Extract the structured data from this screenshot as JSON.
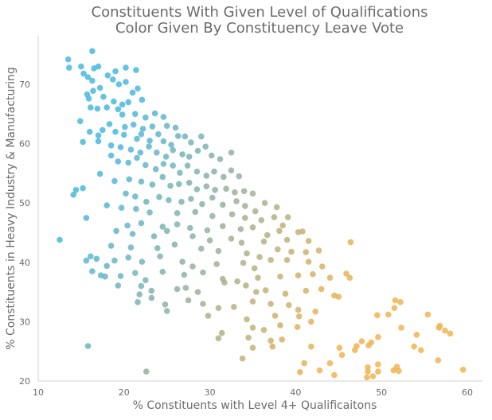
{
  "chart_data": {
    "type": "scatter",
    "title": [
      "Constituents With Given Level of Qualifications",
      "Color Given By Constituency Leave Vote"
    ],
    "xlabel": "% Constituents with Level 4+ Qualificaitons",
    "ylabel": "% Constituents in Heavy Industry & Manufacturing",
    "xlim": [
      10,
      62
    ],
    "ylim": [
      20,
      79
    ],
    "x_ticks": [
      "10",
      "20",
      "30",
      "40",
      "50",
      "60"
    ],
    "y_ticks": [
      "20",
      "30",
      "40",
      "50",
      "60",
      "70"
    ],
    "grid": false,
    "colors": {
      "low_leave": "#4ab8dd",
      "mid_leave": "#9fb096",
      "high_leave": "#f0b450",
      "text": "#6b6b6b",
      "axis": "#d3d3d3"
    },
    "points": [
      [
        13.5,
        74.2
      ],
      [
        13.6,
        72.8
      ],
      [
        16.3,
        75.6
      ],
      [
        15.0,
        73.0
      ],
      [
        15.3,
        71.8
      ],
      [
        15.8,
        71.2
      ],
      [
        16.3,
        70.6
      ],
      [
        16.5,
        72.7
      ],
      [
        17.0,
        73.0
      ],
      [
        18.1,
        71.5
      ],
      [
        19.0,
        72.2
      ],
      [
        20.2,
        72.8
      ],
      [
        21.4,
        72.4
      ],
      [
        18.7,
        70.8
      ],
      [
        19.4,
        70.0
      ],
      [
        20.2,
        70.4
      ],
      [
        21.6,
        69.3
      ],
      [
        17.2,
        69.4
      ],
      [
        16.4,
        68.9
      ],
      [
        15.7,
        68.3
      ],
      [
        15.9,
        67.6
      ],
      [
        17.6,
        67.9
      ],
      [
        18.8,
        67.1
      ],
      [
        19.8,
        66.6
      ],
      [
        20.5,
        67.0
      ],
      [
        21.0,
        68.6
      ],
      [
        22.1,
        67.4
      ],
      [
        16.1,
        66.1
      ],
      [
        16.9,
        65.9
      ],
      [
        18.0,
        66.1
      ],
      [
        19.3,
        65.8
      ],
      [
        19.8,
        64.9
      ],
      [
        21.3,
        65.0
      ],
      [
        22.5,
        64.4
      ],
      [
        23.6,
        65.1
      ],
      [
        24.6,
        64.5
      ],
      [
        14.9,
        63.8
      ],
      [
        18.3,
        63.3
      ],
      [
        20.1,
        62.8
      ],
      [
        21.1,
        63.2
      ],
      [
        22.2,
        62.5
      ],
      [
        23.3,
        62.9
      ],
      [
        24.0,
        61.6
      ],
      [
        25.0,
        63.0
      ],
      [
        26.0,
        62.7
      ],
      [
        16.0,
        62.0
      ],
      [
        17.0,
        61.4
      ],
      [
        17.5,
        62.3
      ],
      [
        19.0,
        62.0
      ],
      [
        20.0,
        61.5
      ],
      [
        21.5,
        60.8
      ],
      [
        22.0,
        61.6
      ],
      [
        23.0,
        60.5
      ],
      [
        24.6,
        60.4
      ],
      [
        25.5,
        59.8
      ],
      [
        26.3,
        61.3
      ],
      [
        27.1,
        61.2
      ],
      [
        27.8,
        60.2
      ],
      [
        29.0,
        61.2
      ],
      [
        15.2,
        60.3
      ],
      [
        17.0,
        60.4
      ],
      [
        18.5,
        59.7
      ],
      [
        19.6,
        59.4
      ],
      [
        20.8,
        59.0
      ],
      [
        21.9,
        58.5
      ],
      [
        22.9,
        59.5
      ],
      [
        23.8,
        58.5
      ],
      [
        24.9,
        57.8
      ],
      [
        25.7,
        58.9
      ],
      [
        26.8,
        58.2
      ],
      [
        27.6,
        57.8
      ],
      [
        28.6,
        58.8
      ],
      [
        29.5,
        59.5
      ],
      [
        30.2,
        58.0
      ],
      [
        31.2,
        57.4
      ],
      [
        32.5,
        58.5
      ],
      [
        18.5,
        58.0
      ],
      [
        19.3,
        57.0
      ],
      [
        20.5,
        56.8
      ],
      [
        21.5,
        57.6
      ],
      [
        22.5,
        56.4
      ],
      [
        23.7,
        55.7
      ],
      [
        24.6,
        56.6
      ],
      [
        25.7,
        56.3
      ],
      [
        26.5,
        55.1
      ],
      [
        27.4,
        56.3
      ],
      [
        28.5,
        55.3
      ],
      [
        29.6,
        54.6
      ],
      [
        30.5,
        55.3
      ],
      [
        31.6,
        54.4
      ],
      [
        32.5,
        55.5
      ],
      [
        33.4,
        54.5
      ],
      [
        17.2,
        54.9
      ],
      [
        18.9,
        53.7
      ],
      [
        20.6,
        54.0
      ],
      [
        22.0,
        53.6
      ],
      [
        23.3,
        53.1
      ],
      [
        24.5,
        54.4
      ],
      [
        25.4,
        52.9
      ],
      [
        26.4,
        53.2
      ],
      [
        27.6,
        53.4
      ],
      [
        28.5,
        52.3
      ],
      [
        29.6,
        52.8
      ],
      [
        30.6,
        52.2
      ],
      [
        31.9,
        52.4
      ],
      [
        32.9,
        51.8
      ],
      [
        34.0,
        52.0
      ],
      [
        35.0,
        51.6
      ],
      [
        14.4,
        52.2
      ],
      [
        14.1,
        51.4
      ],
      [
        15.2,
        52.5
      ],
      [
        20.2,
        51.6
      ],
      [
        21.3,
        51.1
      ],
      [
        22.6,
        50.2
      ],
      [
        24.1,
        51.0
      ],
      [
        25.2,
        50.5
      ],
      [
        26.7,
        50.2
      ],
      [
        27.8,
        50.7
      ],
      [
        29.1,
        49.8
      ],
      [
        30.3,
        50.9
      ],
      [
        31.5,
        49.7
      ],
      [
        33.1,
        50.3
      ],
      [
        34.1,
        49.5
      ],
      [
        35.3,
        48.6
      ],
      [
        36.4,
        50.0
      ],
      [
        37.8,
        49.3
      ],
      [
        18.0,
        49.6
      ],
      [
        19.7,
        49.2
      ],
      [
        21.4,
        49.0
      ],
      [
        23.0,
        48.4
      ],
      [
        26.2,
        48.3
      ],
      [
        28.3,
        48.5
      ],
      [
        30.3,
        47.8
      ],
      [
        32.6,
        48.1
      ],
      [
        34.1,
        47.5
      ],
      [
        36.0,
        47.1
      ],
      [
        37.5,
        47.6
      ],
      [
        38.5,
        46.2
      ],
      [
        39.1,
        47.6
      ],
      [
        15.6,
        47.5
      ],
      [
        20.4,
        46.2
      ],
      [
        22.0,
        46.6
      ],
      [
        24.5,
        46.0
      ],
      [
        26.2,
        46.4
      ],
      [
        27.7,
        45.8
      ],
      [
        29.7,
        45.4
      ],
      [
        31.5,
        46.1
      ],
      [
        33.6,
        45.6
      ],
      [
        35.0,
        45.9
      ],
      [
        36.7,
        44.6
      ],
      [
        38.1,
        45.3
      ],
      [
        40.3,
        45.1
      ],
      [
        40.8,
        45.2
      ],
      [
        19.1,
        45.3
      ],
      [
        21.0,
        44.8
      ],
      [
        23.5,
        44.4
      ],
      [
        25.0,
        45.3
      ],
      [
        28.0,
        44.4
      ],
      [
        30.0,
        43.7
      ],
      [
        32.5,
        44.0
      ],
      [
        33.7,
        43.3
      ],
      [
        36.3,
        43.5
      ],
      [
        39.0,
        43.8
      ],
      [
        41.5,
        43.6
      ],
      [
        46.4,
        43.4
      ],
      [
        12.5,
        43.8
      ],
      [
        18.5,
        42.8
      ],
      [
        20.8,
        42.5
      ],
      [
        23.9,
        42.4
      ],
      [
        25.9,
        43.0
      ],
      [
        29.0,
        42.3
      ],
      [
        31.0,
        41.9
      ],
      [
        34.3,
        41.5
      ],
      [
        35.8,
        40.9
      ],
      [
        37.9,
        42.2
      ],
      [
        39.5,
        41.8
      ],
      [
        41.2,
        41.7
      ],
      [
        42.7,
        42.0
      ],
      [
        16.1,
        41.0
      ],
      [
        16.8,
        40.6
      ],
      [
        18.9,
        40.3
      ],
      [
        20.5,
        40.8
      ],
      [
        22.1,
        40.1
      ],
      [
        24.2,
        41.0
      ],
      [
        26.8,
        40.1
      ],
      [
        28.0,
        39.3
      ],
      [
        30.8,
        39.7
      ],
      [
        33.9,
        39.9
      ],
      [
        35.2,
        39.0
      ],
      [
        37.1,
        40.4
      ],
      [
        39.0,
        40.4
      ],
      [
        41.5,
        40.1
      ],
      [
        43.1,
        39.3
      ],
      [
        15.6,
        40.3
      ],
      [
        16.3,
        38.5
      ],
      [
        17.3,
        37.8
      ],
      [
        18.0,
        39.4
      ],
      [
        19.6,
        37.7
      ],
      [
        21.3,
        38.2
      ],
      [
        22.5,
        37.0
      ],
      [
        24.5,
        38.4
      ],
      [
        27.0,
        37.9
      ],
      [
        29.2,
        38.3
      ],
      [
        31.5,
        37.2
      ],
      [
        33.2,
        36.8
      ],
      [
        35.6,
        37.4
      ],
      [
        38.2,
        37.6
      ],
      [
        40.3,
        37.8
      ],
      [
        42.0,
        38.0
      ],
      [
        44.0,
        37.4
      ],
      [
        45.9,
        38.1
      ],
      [
        46.3,
        37.4
      ],
      [
        17.8,
        37.6
      ],
      [
        19.3,
        36.1
      ],
      [
        22.0,
        36.0
      ],
      [
        23.2,
        35.2
      ],
      [
        26.2,
        35.5
      ],
      [
        27.2,
        35.7
      ],
      [
        28.6,
        35.0
      ],
      [
        31.7,
        36.6
      ],
      [
        34.2,
        36.1
      ],
      [
        35.4,
        35.0
      ],
      [
        36.5,
        35.3
      ],
      [
        38.8,
        34.7
      ],
      [
        41.2,
        35.2
      ],
      [
        43.0,
        35.5
      ],
      [
        44.5,
        34.4
      ],
      [
        45.0,
        34.2
      ],
      [
        21.8,
        34.6
      ],
      [
        23.2,
        34.0
      ],
      [
        24.8,
        32.9
      ],
      [
        27.5,
        33.6
      ],
      [
        29.2,
        33.0
      ],
      [
        31.0,
        32.3
      ],
      [
        32.8,
        32.5
      ],
      [
        35.0,
        33.4
      ],
      [
        37.1,
        33.0
      ],
      [
        39.2,
        32.8
      ],
      [
        40.3,
        32.0
      ],
      [
        42.3,
        31.7
      ],
      [
        51.6,
        33.6
      ],
      [
        51.5,
        32.3
      ],
      [
        52.2,
        33.3
      ],
      [
        21.6,
        33.3
      ],
      [
        25.0,
        31.8
      ],
      [
        29.8,
        31.0
      ],
      [
        34.3,
        30.4
      ],
      [
        37.6,
        31.0
      ],
      [
        40.4,
        30.9
      ],
      [
        41.8,
        30.0
      ],
      [
        49.5,
        31.1
      ],
      [
        50.8,
        31.2
      ],
      [
        55.4,
        31.2
      ],
      [
        56.8,
        29.3
      ],
      [
        56.7,
        29.0
      ],
      [
        57.4,
        28.5
      ],
      [
        58.0,
        28.0
      ],
      [
        31.4,
        28.1
      ],
      [
        35.0,
        29.0
      ],
      [
        36.3,
        28.6
      ],
      [
        38.2,
        29.4
      ],
      [
        40.2,
        29.1
      ],
      [
        52.3,
        29.0
      ],
      [
        54.1,
        27.8
      ],
      [
        49.6,
        27.4
      ],
      [
        48.8,
        26.5
      ],
      [
        31.0,
        27.2
      ],
      [
        34.5,
        27.3
      ],
      [
        37.1,
        26.8
      ],
      [
        38.4,
        27.0
      ],
      [
        41.8,
        25.8
      ],
      [
        45.1,
        25.6
      ],
      [
        47.1,
        25.9
      ],
      [
        47.7,
        26.7
      ],
      [
        48.5,
        26.0
      ],
      [
        15.8,
        25.9
      ],
      [
        35.0,
        25.6
      ],
      [
        37.3,
        25.8
      ],
      [
        46.9,
        25.2
      ],
      [
        53.8,
        25.8
      ],
      [
        54.6,
        25.2
      ],
      [
        56.6,
        23.5
      ],
      [
        45.4,
        24.4
      ],
      [
        49.6,
        22.8
      ],
      [
        44.0,
        23.0
      ],
      [
        48.4,
        22.3
      ],
      [
        51.4,
        21.8
      ],
      [
        51.8,
        22.4
      ],
      [
        52.0,
        21.7
      ],
      [
        49.6,
        21.6
      ],
      [
        49.0,
        20.8
      ],
      [
        48.3,
        20.6
      ],
      [
        48.4,
        21.6
      ],
      [
        40.5,
        21.5
      ],
      [
        44.5,
        21.0
      ],
      [
        59.5,
        21.9
      ],
      [
        22.6,
        21.6
      ],
      [
        33.8,
        23.8
      ],
      [
        42.8,
        21.8
      ],
      [
        41.0,
        23.0
      ]
    ]
  }
}
